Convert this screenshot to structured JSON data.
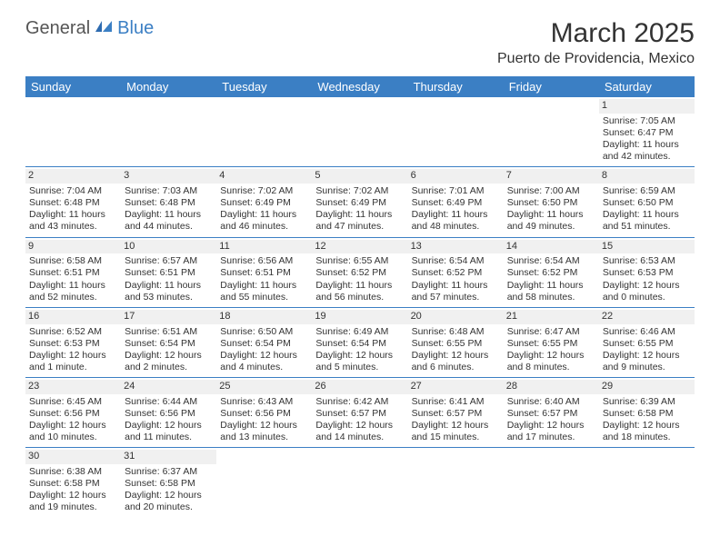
{
  "logo": {
    "part1": "General",
    "part2": "Blue"
  },
  "title": "March 2025",
  "location": "Puerto de Providencia, Mexico",
  "colors": {
    "header_bg": "#3b7fc4",
    "header_text": "#ffffff",
    "border": "#3b7fc4",
    "daynum_bg": "#f0f0f0",
    "text": "#333333",
    "logo_gray": "#555555",
    "logo_blue": "#3b7fc4"
  },
  "typography": {
    "title_fontsize": 30,
    "location_fontsize": 16,
    "header_fontsize": 13,
    "cell_fontsize": 10.5
  },
  "day_headers": [
    "Sunday",
    "Monday",
    "Tuesday",
    "Wednesday",
    "Thursday",
    "Friday",
    "Saturday"
  ],
  "weeks": [
    [
      null,
      null,
      null,
      null,
      null,
      null,
      {
        "n": "1",
        "sunrise": "Sunrise: 7:05 AM",
        "sunset": "Sunset: 6:47 PM",
        "daylight": "Daylight: 11 hours and 42 minutes."
      }
    ],
    [
      {
        "n": "2",
        "sunrise": "Sunrise: 7:04 AM",
        "sunset": "Sunset: 6:48 PM",
        "daylight": "Daylight: 11 hours and 43 minutes."
      },
      {
        "n": "3",
        "sunrise": "Sunrise: 7:03 AM",
        "sunset": "Sunset: 6:48 PM",
        "daylight": "Daylight: 11 hours and 44 minutes."
      },
      {
        "n": "4",
        "sunrise": "Sunrise: 7:02 AM",
        "sunset": "Sunset: 6:49 PM",
        "daylight": "Daylight: 11 hours and 46 minutes."
      },
      {
        "n": "5",
        "sunrise": "Sunrise: 7:02 AM",
        "sunset": "Sunset: 6:49 PM",
        "daylight": "Daylight: 11 hours and 47 minutes."
      },
      {
        "n": "6",
        "sunrise": "Sunrise: 7:01 AM",
        "sunset": "Sunset: 6:49 PM",
        "daylight": "Daylight: 11 hours and 48 minutes."
      },
      {
        "n": "7",
        "sunrise": "Sunrise: 7:00 AM",
        "sunset": "Sunset: 6:50 PM",
        "daylight": "Daylight: 11 hours and 49 minutes."
      },
      {
        "n": "8",
        "sunrise": "Sunrise: 6:59 AM",
        "sunset": "Sunset: 6:50 PM",
        "daylight": "Daylight: 11 hours and 51 minutes."
      }
    ],
    [
      {
        "n": "9",
        "sunrise": "Sunrise: 6:58 AM",
        "sunset": "Sunset: 6:51 PM",
        "daylight": "Daylight: 11 hours and 52 minutes."
      },
      {
        "n": "10",
        "sunrise": "Sunrise: 6:57 AM",
        "sunset": "Sunset: 6:51 PM",
        "daylight": "Daylight: 11 hours and 53 minutes."
      },
      {
        "n": "11",
        "sunrise": "Sunrise: 6:56 AM",
        "sunset": "Sunset: 6:51 PM",
        "daylight": "Daylight: 11 hours and 55 minutes."
      },
      {
        "n": "12",
        "sunrise": "Sunrise: 6:55 AM",
        "sunset": "Sunset: 6:52 PM",
        "daylight": "Daylight: 11 hours and 56 minutes."
      },
      {
        "n": "13",
        "sunrise": "Sunrise: 6:54 AM",
        "sunset": "Sunset: 6:52 PM",
        "daylight": "Daylight: 11 hours and 57 minutes."
      },
      {
        "n": "14",
        "sunrise": "Sunrise: 6:54 AM",
        "sunset": "Sunset: 6:52 PM",
        "daylight": "Daylight: 11 hours and 58 minutes."
      },
      {
        "n": "15",
        "sunrise": "Sunrise: 6:53 AM",
        "sunset": "Sunset: 6:53 PM",
        "daylight": "Daylight: 12 hours and 0 minutes."
      }
    ],
    [
      {
        "n": "16",
        "sunrise": "Sunrise: 6:52 AM",
        "sunset": "Sunset: 6:53 PM",
        "daylight": "Daylight: 12 hours and 1 minute."
      },
      {
        "n": "17",
        "sunrise": "Sunrise: 6:51 AM",
        "sunset": "Sunset: 6:54 PM",
        "daylight": "Daylight: 12 hours and 2 minutes."
      },
      {
        "n": "18",
        "sunrise": "Sunrise: 6:50 AM",
        "sunset": "Sunset: 6:54 PM",
        "daylight": "Daylight: 12 hours and 4 minutes."
      },
      {
        "n": "19",
        "sunrise": "Sunrise: 6:49 AM",
        "sunset": "Sunset: 6:54 PM",
        "daylight": "Daylight: 12 hours and 5 minutes."
      },
      {
        "n": "20",
        "sunrise": "Sunrise: 6:48 AM",
        "sunset": "Sunset: 6:55 PM",
        "daylight": "Daylight: 12 hours and 6 minutes."
      },
      {
        "n": "21",
        "sunrise": "Sunrise: 6:47 AM",
        "sunset": "Sunset: 6:55 PM",
        "daylight": "Daylight: 12 hours and 8 minutes."
      },
      {
        "n": "22",
        "sunrise": "Sunrise: 6:46 AM",
        "sunset": "Sunset: 6:55 PM",
        "daylight": "Daylight: 12 hours and 9 minutes."
      }
    ],
    [
      {
        "n": "23",
        "sunrise": "Sunrise: 6:45 AM",
        "sunset": "Sunset: 6:56 PM",
        "daylight": "Daylight: 12 hours and 10 minutes."
      },
      {
        "n": "24",
        "sunrise": "Sunrise: 6:44 AM",
        "sunset": "Sunset: 6:56 PM",
        "daylight": "Daylight: 12 hours and 11 minutes."
      },
      {
        "n": "25",
        "sunrise": "Sunrise: 6:43 AM",
        "sunset": "Sunset: 6:56 PM",
        "daylight": "Daylight: 12 hours and 13 minutes."
      },
      {
        "n": "26",
        "sunrise": "Sunrise: 6:42 AM",
        "sunset": "Sunset: 6:57 PM",
        "daylight": "Daylight: 12 hours and 14 minutes."
      },
      {
        "n": "27",
        "sunrise": "Sunrise: 6:41 AM",
        "sunset": "Sunset: 6:57 PM",
        "daylight": "Daylight: 12 hours and 15 minutes."
      },
      {
        "n": "28",
        "sunrise": "Sunrise: 6:40 AM",
        "sunset": "Sunset: 6:57 PM",
        "daylight": "Daylight: 12 hours and 17 minutes."
      },
      {
        "n": "29",
        "sunrise": "Sunrise: 6:39 AM",
        "sunset": "Sunset: 6:58 PM",
        "daylight": "Daylight: 12 hours and 18 minutes."
      }
    ],
    [
      {
        "n": "30",
        "sunrise": "Sunrise: 6:38 AM",
        "sunset": "Sunset: 6:58 PM",
        "daylight": "Daylight: 12 hours and 19 minutes."
      },
      {
        "n": "31",
        "sunrise": "Sunrise: 6:37 AM",
        "sunset": "Sunset: 6:58 PM",
        "daylight": "Daylight: 12 hours and 20 minutes."
      },
      null,
      null,
      null,
      null,
      null
    ]
  ]
}
